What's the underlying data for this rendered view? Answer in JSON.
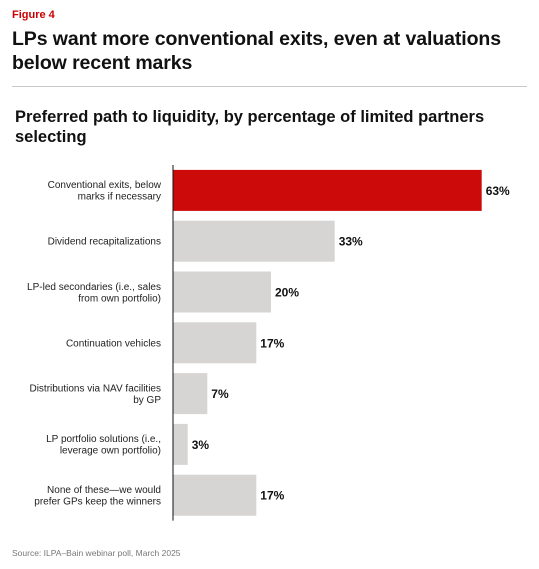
{
  "figure_label": "Figure 4",
  "headline": "LPs want more conventional exits, even at valuations below recent marks",
  "source": "Source: ILPA–Bain webinar poll, March 2025",
  "colors": {
    "highlight": "#cc0a0a",
    "bar": "#d6d5d3",
    "axis": "#111111"
  },
  "chart_data": {
    "type": "bar",
    "orientation": "horizontal",
    "title": "Preferred path to liquidity, by percentage of limited partners selecting",
    "categories": [
      [
        "Conventional exits, below",
        "marks if necessary"
      ],
      [
        "Dividend recapitalizations"
      ],
      [
        "LP-led secondaries (i.e., sales",
        "from own portfolio)"
      ],
      [
        "Continuation vehicles"
      ],
      [
        "Distributions via NAV facilities",
        "by GP"
      ],
      [
        "LP portfolio solutions (i.e.,",
        "leverage own portfolio)"
      ],
      [
        "None of these—we would",
        "prefer GPs keep the winners"
      ]
    ],
    "values": [
      63,
      33,
      20,
      17,
      7,
      3,
      17
    ],
    "value_labels": [
      "63%",
      "33%",
      "20%",
      "17%",
      "7%",
      "3%",
      "17%"
    ],
    "highlight_index": 0,
    "unit": "%",
    "xlim": [
      0,
      100
    ],
    "grid": false,
    "legend": "none"
  }
}
